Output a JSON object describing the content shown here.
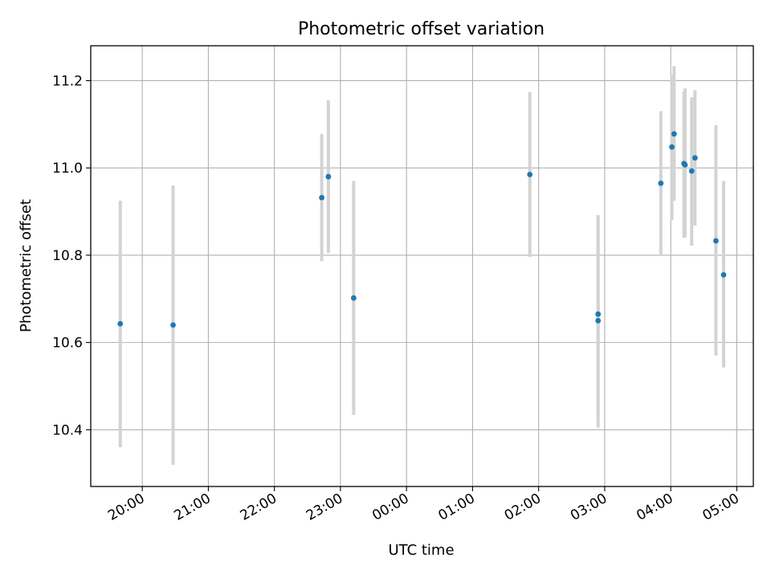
{
  "chart_data": {
    "type": "scatter",
    "title": "Photometric offset variation",
    "xlabel": "UTC time",
    "ylabel": "Photometric offset",
    "x_axis_kind": "time",
    "x_start_label": "19:00",
    "xlim_hours": [
      19.22,
      29.25
    ],
    "ylim": [
      10.27,
      11.28
    ],
    "grid": true,
    "marker_color": "#1f77b4",
    "errorbar_color": "#d3d3d3",
    "x_tick_labels": [
      "20:00",
      "21:00",
      "22:00",
      "23:00",
      "00:00",
      "01:00",
      "02:00",
      "03:00",
      "04:00",
      "05:00"
    ],
    "y_tick_labels": [
      "10.4",
      "10.6",
      "10.8",
      "11.0",
      "11.2"
    ],
    "points": [
      {
        "time": "19:40",
        "y": 10.643,
        "ylow": 10.36,
        "yhigh": 10.925
      },
      {
        "time": "20:28",
        "y": 10.64,
        "ylow": 10.32,
        "yhigh": 10.96
      },
      {
        "time": "22:43",
        "y": 10.932,
        "ylow": 10.786,
        "yhigh": 11.078
      },
      {
        "time": "22:49",
        "y": 10.98,
        "ylow": 10.805,
        "yhigh": 11.155
      },
      {
        "time": "23:12",
        "y": 10.702,
        "ylow": 10.434,
        "yhigh": 10.97
      },
      {
        "time": "01:52",
        "y": 10.985,
        "ylow": 10.796,
        "yhigh": 11.174
      },
      {
        "time": "02:54",
        "y": 10.665,
        "ylow": 10.44,
        "yhigh": 10.89
      },
      {
        "time": "02:54",
        "y": 10.65,
        "ylow": 10.405,
        "yhigh": 10.892
      },
      {
        "time": "03:51",
        "y": 10.965,
        "ylow": 10.8,
        "yhigh": 11.13
      },
      {
        "time": "04:01",
        "y": 11.048,
        "ylow": 10.88,
        "yhigh": 11.215
      },
      {
        "time": "04:03",
        "y": 11.078,
        "ylow": 10.925,
        "yhigh": 11.233
      },
      {
        "time": "04:12",
        "y": 11.01,
        "ylow": 10.84,
        "yhigh": 11.175
      },
      {
        "time": "04:13",
        "y": 11.007,
        "ylow": 10.842,
        "yhigh": 11.182
      },
      {
        "time": "04:19",
        "y": 10.993,
        "ylow": 10.822,
        "yhigh": 11.162
      },
      {
        "time": "04:22",
        "y": 11.023,
        "ylow": 10.868,
        "yhigh": 11.178
      },
      {
        "time": "04:41",
        "y": 10.833,
        "ylow": 10.57,
        "yhigh": 11.098
      },
      {
        "time": "04:48",
        "y": 10.755,
        "ylow": 10.543,
        "yhigh": 10.97
      }
    ]
  }
}
